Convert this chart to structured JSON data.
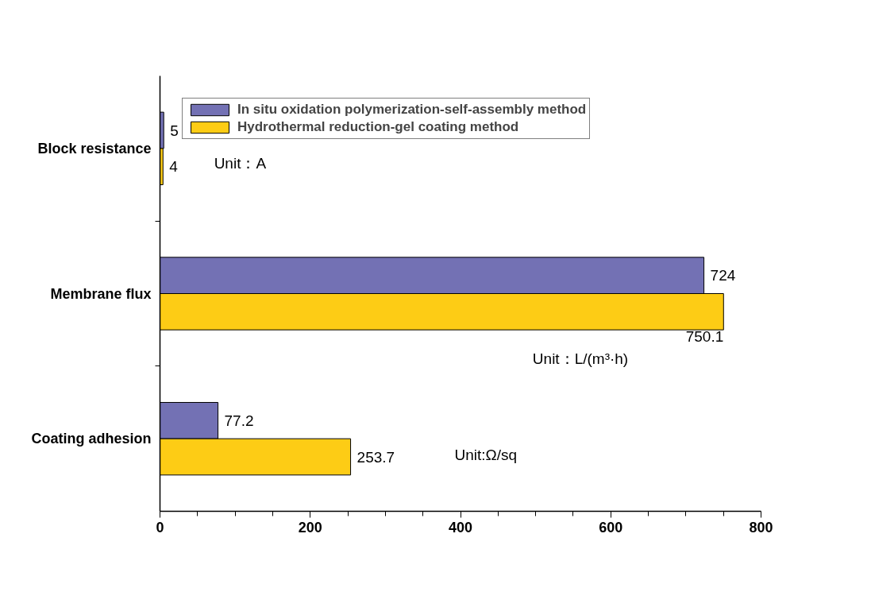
{
  "chart_data": {
    "type": "bar",
    "orientation": "horizontal",
    "categories": [
      "Block resistance",
      "Membrane flux",
      "Coating adhesion"
    ],
    "series": [
      {
        "name": "In situ oxidation polymerization-self-assembly method",
        "color": "#7371b4",
        "values": [
          5,
          724,
          77.2
        ]
      },
      {
        "name": "Hydrothermal reduction-gel coating method",
        "color": "#fdcc15",
        "values": [
          4,
          750.1,
          253.7
        ]
      }
    ],
    "xlim": [
      0,
      800
    ],
    "xticks": [
      0,
      200,
      400,
      600,
      800
    ],
    "data_labels": true,
    "legend": "top left",
    "grid": false,
    "annotations": [
      "Unit：A",
      "Unit：L/(m³·h)",
      "Unit:Ω/sq"
    ]
  }
}
